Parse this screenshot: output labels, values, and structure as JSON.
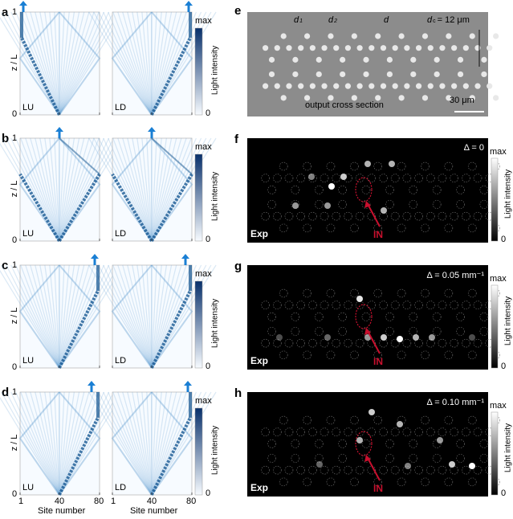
{
  "chart_data": {
    "type": "heatmap",
    "left_panels": [
      {
        "label": "a",
        "plots": [
          {
            "tag": "LU",
            "arrow_site": 4,
            "beam_to": "left"
          },
          {
            "tag": "LD",
            "arrow_site": 77,
            "beam_to": "right"
          }
        ]
      },
      {
        "label": "b",
        "plots": [
          {
            "tag": "LU",
            "arrow_site": 40,
            "beam_to": "both"
          },
          {
            "tag": "LD",
            "arrow_site": 40,
            "beam_to": "both"
          }
        ]
      },
      {
        "label": "c",
        "plots": [
          {
            "tag": "LU",
            "arrow_site": 75,
            "beam_to": "right"
          },
          {
            "tag": "LD",
            "arrow_site": 74,
            "beam_to": "right"
          }
        ]
      },
      {
        "label": "d",
        "plots": [
          {
            "tag": "LU",
            "arrow_site": 72,
            "beam_to": "right"
          },
          {
            "tag": "LD",
            "arrow_site": 76,
            "beam_to": "right"
          }
        ]
      }
    ],
    "xlabel": "Site number",
    "xticks": [
      "1",
      "40",
      "80"
    ],
    "xlim": [
      1,
      80
    ],
    "ylabel": "z / L",
    "yticks": [
      "0",
      "1"
    ],
    "ylim": [
      0,
      1
    ],
    "colorbar": {
      "label": "Light intensity",
      "max": "max",
      "min": "0"
    },
    "right_panels": {
      "e": {
        "label": "e",
        "d1": "d",
        "d1_sub": "1",
        "d2": "d",
        "d2_sub": "2",
        "d": "d",
        "dc": "d",
        "dc_sub": "c",
        "dc_value": "= 12 μm",
        "caption": "output cross section",
        "scale": "30 μm"
      },
      "exp": [
        {
          "label": "f",
          "delta": "Δ = 0",
          "tag": "Exp",
          "input": "IN"
        },
        {
          "label": "g",
          "delta": "Δ = 0.05 mm⁻¹",
          "tag": "Exp",
          "input": "IN"
        },
        {
          "label": "h",
          "delta": "Δ = 0.10 mm⁻¹",
          "tag": "Exp",
          "input": "IN"
        }
      ]
    },
    "colors": {
      "blue": "#0b4f8c",
      "arrow": "#1a7fd4",
      "red": "#c8102e"
    }
  }
}
